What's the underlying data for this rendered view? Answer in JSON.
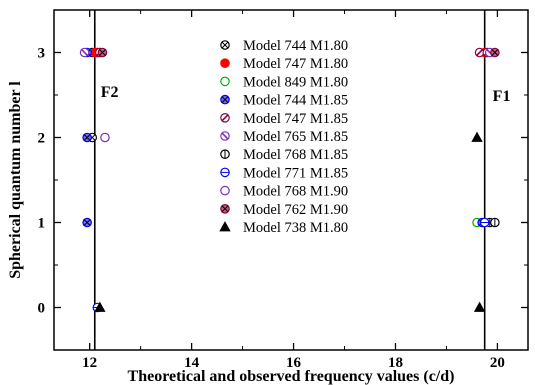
{
  "chart_data": {
    "type": "scatter",
    "xlabel": "Theoretical and observed frequency values (c/d)",
    "ylabel": "Spherical quantum number l",
    "xlim": [
      11.3,
      20.6
    ],
    "ylim": [
      -0.5,
      3.5
    ],
    "x_ticks": [
      12,
      14,
      16,
      18,
      20
    ],
    "y_ticks": [
      0,
      1,
      2,
      3
    ],
    "grid": false,
    "legend_position": "top-center",
    "vertical_lines": [
      {
        "x": 12.1,
        "label": "F2",
        "label_y": 2.55
      },
      {
        "x": 19.75,
        "label": "F1",
        "label_y": 2.5
      }
    ],
    "series": [
      {
        "name": "Model 744 M1.80",
        "color": "#000000",
        "marker": "circle-cross",
        "points": [
          [
            12.05,
            3
          ],
          [
            12.05,
            2
          ],
          [
            12.15,
            3
          ]
        ]
      },
      {
        "name": "Model 747 M1.80",
        "color": "#ff0000",
        "marker": "circle-filled",
        "points": [
          [
            12.1,
            3
          ],
          [
            12.2,
            3
          ],
          [
            19.75,
            3
          ]
        ]
      },
      {
        "name": "Model 849 M1.80",
        "color": "#00aa00",
        "marker": "circle-open",
        "points": [
          [
            19.6,
            1
          ]
        ]
      },
      {
        "name": "Model 744 M1.85",
        "color": "#0000ff",
        "marker": "circle-cross-filled",
        "points": [
          [
            11.95,
            3
          ],
          [
            11.95,
            2
          ],
          [
            11.95,
            1
          ],
          [
            19.7,
            1
          ]
        ]
      },
      {
        "name": "Model 747 M1.85",
        "color": "#8b0040",
        "marker": "circle-slash",
        "points": [
          [
            12.2,
            3
          ],
          [
            19.65,
            3
          ],
          [
            19.8,
            3
          ]
        ]
      },
      {
        "name": "Model 765 M1.85",
        "color": "#7b2fbf",
        "marker": "circle-backslash",
        "points": [
          [
            11.9,
            3
          ],
          [
            19.85,
            3
          ]
        ]
      },
      {
        "name": "Model 768 M1.85",
        "color": "#000000",
        "marker": "circle-vertical",
        "points": [
          [
            19.85,
            1
          ],
          [
            19.95,
            1
          ]
        ]
      },
      {
        "name": "Model 771 M1.85",
        "color": "#0000ff",
        "marker": "circle-horizontal",
        "points": [
          [
            12.15,
            0
          ],
          [
            19.75,
            1
          ]
        ]
      },
      {
        "name": "Model 768 M1.90",
        "color": "#7b2fbf",
        "marker": "circle-open",
        "points": [
          [
            12.3,
            2
          ]
        ]
      },
      {
        "name": "Model 762 M1.90",
        "color": "#8b0040",
        "marker": "circle-cross-filled",
        "points": [
          [
            12.25,
            3
          ],
          [
            19.95,
            3
          ]
        ]
      },
      {
        "name": "Model 738 M1.80",
        "color": "#000000",
        "marker": "triangle",
        "points": [
          [
            12.2,
            0
          ],
          [
            19.6,
            2
          ],
          [
            19.65,
            0
          ]
        ]
      }
    ]
  }
}
